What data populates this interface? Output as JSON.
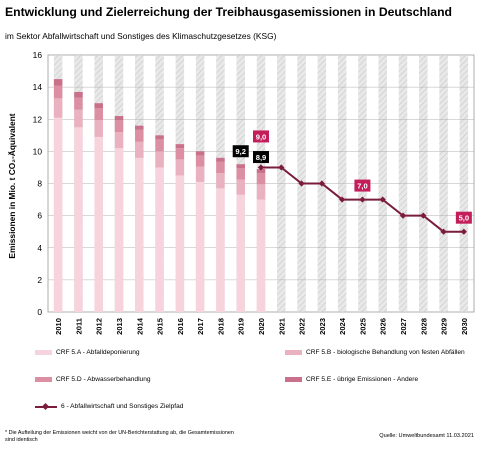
{
  "title": "Entwicklung und Zielerreichung der Treibhausgasemissionen in Deutschland",
  "subtitle": "im Sektor Abfallwirtschaft und Sonstiges des Klimaschutzgesetzes (KSG)",
  "footnote": "* Die Aufteilung der Emissionen weicht von der UN-Berichterstattung ab, die Gesamtemissionen sind identisch",
  "source": "Quelle: Umweltbundesamt  11.03.2021",
  "colors": {
    "crf_5a": "#f7d4dd",
    "crf_5b": "#eab2c1",
    "crf_5d": "#dc8fa3",
    "crf_5e": "#c9718a",
    "target_line": "#7b1c3e",
    "target_label_bg": "#c41e5a",
    "actual_label_bg": "#000000",
    "hatch_bg": "#e6e6e6"
  },
  "chart_data": {
    "type": "bar",
    "stacked": true,
    "ylabel": "Emissionen in Mio. t CO₂-Äquivalent",
    "ylim": [
      0,
      16
    ],
    "yticks": [
      0,
      2,
      4,
      6,
      8,
      10,
      12,
      14,
      16
    ],
    "grid": true,
    "categories": [
      "2010",
      "2011",
      "2012",
      "2013",
      "2014",
      "2015",
      "2016",
      "2017",
      "2018",
      "2019",
      "2020",
      "2021",
      "2022",
      "2023",
      "2024",
      "2025",
      "2026",
      "2027",
      "2028",
      "2029",
      "2030"
    ],
    "series": [
      {
        "name": "CRF 5.A - Abfalldeponierung",
        "color": "#f7d4dd",
        "values": [
          12.1,
          11.5,
          10.9,
          10.2,
          9.6,
          9.0,
          8.5,
          8.1,
          7.7,
          7.3,
          7.0,
          null,
          null,
          null,
          null,
          null,
          null,
          null,
          null,
          null,
          null
        ]
      },
      {
        "name": "CRF 5.B - biologische Behandlung von festen Abfällen",
        "color": "#eab2c1",
        "values": [
          1.2,
          1.1,
          1.05,
          1.0,
          1.0,
          1.0,
          1.0,
          0.95,
          0.95,
          0.95,
          0.95,
          null,
          null,
          null,
          null,
          null,
          null,
          null,
          null,
          null,
          null
        ]
      },
      {
        "name": "CRF 5.D - Abwasserbehandlung",
        "color": "#dc8fa3",
        "values": [
          0.8,
          0.75,
          0.75,
          0.75,
          0.75,
          0.75,
          0.7,
          0.7,
          0.7,
          0.7,
          0.7,
          null,
          null,
          null,
          null,
          null,
          null,
          null,
          null,
          null,
          null
        ]
      },
      {
        "name": "CRF 5.E - übrige Emissionen - Andere",
        "color": "#c9718a",
        "values": [
          0.4,
          0.35,
          0.3,
          0.25,
          0.25,
          0.25,
          0.25,
          0.25,
          0.25,
          0.25,
          0.25,
          null,
          null,
          null,
          null,
          null,
          null,
          null,
          null,
          null,
          null
        ]
      },
      {
        "name": "6 - Abfallwirtschaft und Sonstiges Zielpfad",
        "type": "line",
        "color": "#7b1c3e",
        "values": [
          null,
          null,
          null,
          null,
          null,
          null,
          null,
          null,
          null,
          null,
          9.0,
          9.0,
          8.0,
          8.0,
          7.0,
          7.0,
          7.0,
          6.0,
          6.0,
          5.0,
          5.0
        ]
      }
    ],
    "annotations": [
      {
        "category": "2019",
        "value": 9.2,
        "text": "9,2",
        "style": "actual"
      },
      {
        "category": "2020",
        "value": 8.9,
        "text": "8,9",
        "style": "actual"
      },
      {
        "category": "2020",
        "value": 9.0,
        "text": "9,0",
        "style": "target"
      },
      {
        "category": "2025",
        "value": 7.0,
        "text": "7,0",
        "style": "target"
      },
      {
        "category": "2030",
        "value": 5.0,
        "text": "5,0",
        "style": "target"
      }
    ],
    "legend": [
      {
        "label": "CRF 5.A - Abfalldeponierung",
        "kind": "swatch",
        "color": "#f7d4dd"
      },
      {
        "label": "CRF 5.B - biologische Behandlung von festen Abfällen",
        "kind": "swatch",
        "color": "#eab2c1"
      },
      {
        "label": "CRF 5.D - Abwasserbehandlung",
        "kind": "swatch",
        "color": "#dc8fa3"
      },
      {
        "label": "CRF 5.E - übrige Emissionen - Andere",
        "kind": "swatch",
        "color": "#c9718a"
      },
      {
        "label": "6 - Abfallwirtschaft und Sonstiges Zielpfad",
        "kind": "line",
        "color": "#7b1c3e"
      }
    ],
    "legend_position": "bottom"
  }
}
